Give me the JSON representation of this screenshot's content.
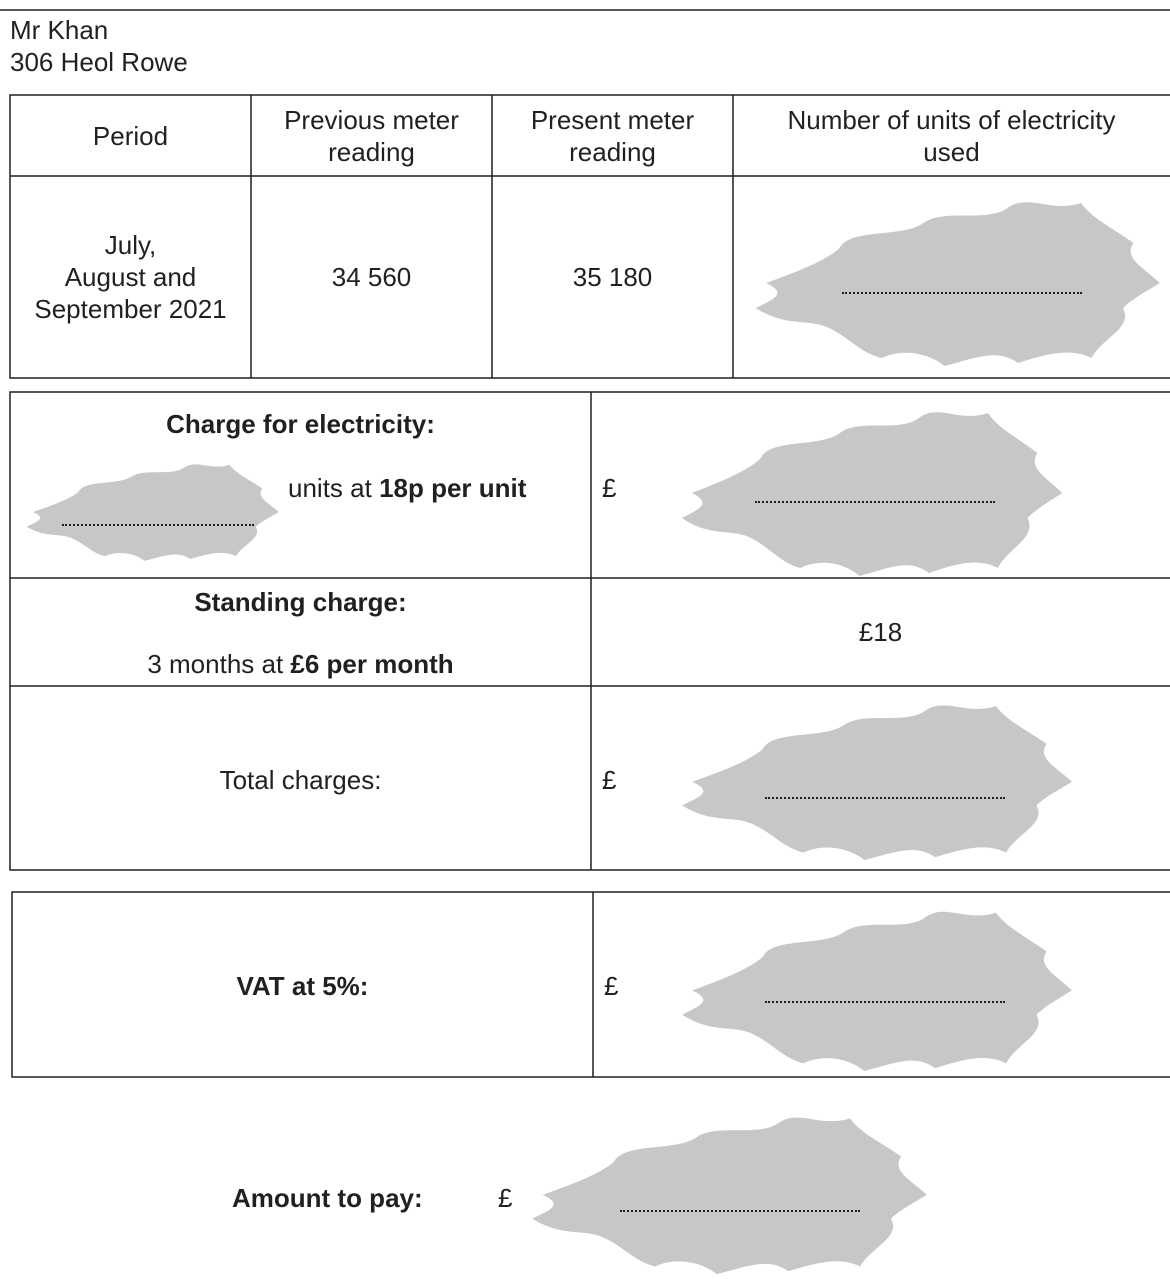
{
  "header": {
    "name": "Mr Khan",
    "address": "306 Heol Rowe"
  },
  "meter_table": {
    "columns": [
      "Period",
      "Previous meter\nreading",
      "Present meter\nreading",
      "Number of units of electricity\nused"
    ],
    "rows": [
      [
        "July,\nAugust and\nSeptember 2021",
        "34 560",
        "35 180"
      ]
    ]
  },
  "charges": {
    "electricity": {
      "title": "Charge for electricity:",
      "units_text": "units at ",
      "rate": "18p per unit",
      "currency": "£"
    },
    "standing": {
      "title": "Standing charge:",
      "months_text": "3 months at ",
      "rate": "£6 per month",
      "amount": "£18"
    },
    "total": {
      "label": "Total charges:",
      "currency": "£"
    }
  },
  "vat": {
    "label": "VAT at 5%:",
    "currency": "£"
  },
  "amount_to_pay": {
    "label": "Amount to pay:",
    "currency": "£"
  }
}
